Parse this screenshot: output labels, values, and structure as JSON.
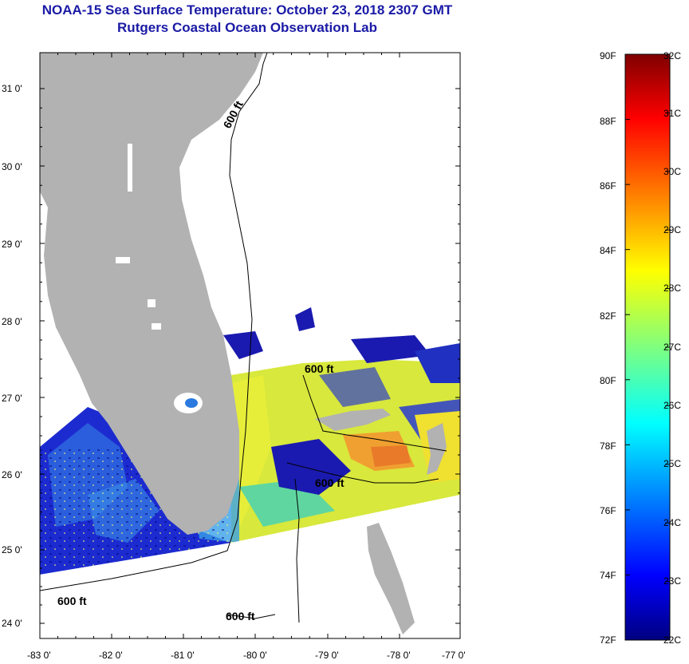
{
  "header": {
    "title": "NOAA-15 Sea Surface Temperature:  October 23, 2018 2307 GMT",
    "subtitle": "Rutgers Coastal Ocean Observation Lab"
  },
  "map": {
    "lat_labels": [
      "31 0'",
      "30 0'",
      "29 0'",
      "28 0'",
      "27 0'",
      "26 0'",
      "25 0'",
      "24 0'"
    ],
    "lon_labels": [
      "-83 0'",
      "-82 0'",
      "-81 0'",
      "-80 0'",
      "-79 0'",
      "-78 0'",
      "-77 0'"
    ],
    "contour_labels": [
      "600 ft",
      "600 ft",
      "600 ft",
      "600 ft",
      "600 ft"
    ]
  },
  "colorbar": {
    "fahrenheit_labels": [
      "90F",
      "88F",
      "86F",
      "84F",
      "82F",
      "80F",
      "78F",
      "76F",
      "74F",
      "72F"
    ],
    "celsius_labels": [
      "32C",
      "31C",
      "30C",
      "29C",
      "28C",
      "27C",
      "26C",
      "25C",
      "24C",
      "23C",
      "22C"
    ],
    "colors": [
      "#00007f",
      "#0000ff",
      "#007fff",
      "#00ffff",
      "#7fff7f",
      "#ffff00",
      "#ff7f00",
      "#ff0000",
      "#7f0000"
    ]
  }
}
